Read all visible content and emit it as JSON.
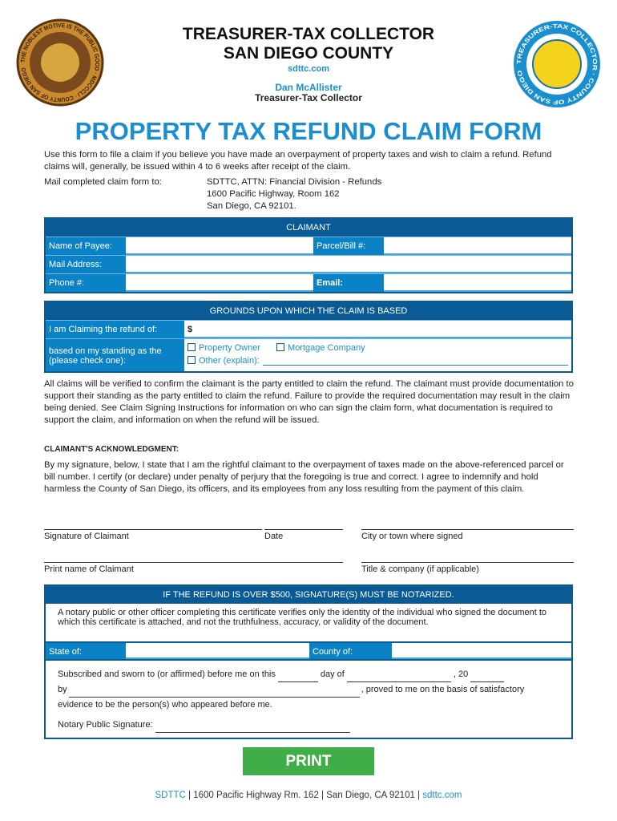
{
  "header": {
    "line1": "TREASURER-TAX COLLECTOR",
    "line2": "SAN DIEGO COUNTY",
    "website": "sdttc.com",
    "official_name": "Dan McAllister",
    "official_title": "Treasurer-Tax Collector",
    "left_seal_text": "THE NOBLEST MOTIVE IS THE PUBLIC GOOD · MDCCCLI · COUNTY OF SAN DIEGO",
    "right_seal_text": "TREASURER-TAX COLLECTOR · COUNTY OF SAN DIEGO"
  },
  "title": "PROPERTY TAX REFUND CLAIM FORM",
  "intro": "Use this form to file a claim if you believe you have made an overpayment of property taxes and wish to claim a refund. Refund claims will, generally, be issued within 4 to 6 weeks after receipt of the claim.",
  "mail": {
    "label": "Mail completed claim form to:",
    "lines": [
      "SDTTC, ATTN: Financial Division - Refunds",
      "1600 Pacific Highway, Room 162",
      "San Diego, CA 92101."
    ]
  },
  "claimant": {
    "header": "CLAIMANT",
    "name_label": "Name of Payee:",
    "parcel_label": "Parcel/Bill #:",
    "address_label": "Mail Address:",
    "phone_label": "Phone #:",
    "email_label": "Email:"
  },
  "grounds": {
    "header": "GROUNDS UPON WHICH THE CLAIM IS BASED",
    "refund_label": "I am Claiming the refund of:",
    "currency": "$",
    "standing_label": "based on my standing as the (please check one):",
    "options": [
      "Property Owner",
      "Mortgage Company",
      "Other (explain):"
    ]
  },
  "verification": "All claims will be verified to confirm the claimant is the party entitled to claim the refund. The claimant must provide documentation to support their standing as the party entitled to claim the refund. Failure to provide the required documentation may result in the claim being denied. See Claim Signing Instructions for information on who can sign the claim form, what documentation is required to support the claim, and information on when the refund will be issued.",
  "ack": {
    "heading": "CLAIMANT'S ACKNOWLEDGMENT:",
    "text": "By my signature, below, I state that I am the rightful claimant to the overpayment of taxes made on the above-referenced parcel or bill number. I certify (or declare) under penalty of perjury that the foregoing is true and correct. I agree to indemnify and hold harmless the County of San Diego, its officers, and its employees from any loss resulting from the payment of this claim."
  },
  "signatures": {
    "signature": "Signature of Claimant",
    "date": "Date",
    "city": "City or town where signed",
    "print_name": "Print name of Claimant",
    "title_company": "Title & company (if applicable)"
  },
  "notary": {
    "header": "IF THE REFUND IS OVER $500, SIGNATURE(S) MUST BE NOTARIZED.",
    "disclaimer": "A notary public or other officer completing this certificate verifies only the identity of the individual who signed the document to which this certificate is attached, and not the truthfulness, accuracy, or validity of the document.",
    "state_label": "State of:",
    "county_label": "County of:",
    "sworn_a": "Subscribed and sworn to (or affirmed) before me on this",
    "sworn_b": "day of",
    "sworn_c": ", 20",
    "by": "by",
    "proved": ", proved to me on the basis of satisfactory",
    "evidence": "evidence to be the person(s) who appeared before me.",
    "signature_label": "Notary Public Signature:"
  },
  "print_button": "PRINT",
  "footer": {
    "org": "SDTTC",
    "address": "1600 Pacific Highway Rm. 162",
    "city": "San Diego, CA 92101",
    "website": "sdttc.com"
  },
  "colors": {
    "dark_blue": "#0a5a96",
    "blue": "#0c82c6",
    "title_blue": "#1a8fd0",
    "green": "#3fae49"
  }
}
